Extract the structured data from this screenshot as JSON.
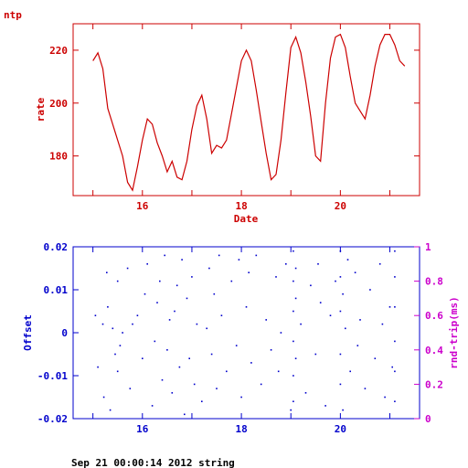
{
  "page_title": "ntp",
  "footer": "Sep 21 00:00:14 2012 string",
  "colors": {
    "red": "#cc0000",
    "blue": "#0000cc",
    "magenta": "#cc00cc"
  },
  "chart_data": [
    {
      "type": "line",
      "title": "",
      "xlabel": "Date",
      "ylabel": "rate",
      "xlim": [
        14.6,
        21.6
      ],
      "ylim": [
        165,
        230
      ],
      "xticks": [
        15,
        16,
        17,
        18,
        19,
        20,
        21
      ],
      "xtick_labels": [
        "16",
        "18",
        "20"
      ],
      "xtick_label_values": [
        16,
        18,
        20
      ],
      "yticks": [
        180,
        200,
        220
      ],
      "ytick_labels": [
        "180",
        "200",
        "220"
      ],
      "grid": false,
      "series": [
        {
          "x": [
            15.0,
            15.1,
            15.2,
            15.3,
            15.4,
            15.5,
            15.6,
            15.7,
            15.8,
            15.9,
            16.0,
            16.1,
            16.2,
            16.3,
            16.4,
            16.5,
            16.6,
            16.7,
            16.8,
            16.9,
            17.0,
            17.1,
            17.2,
            17.3,
            17.4,
            17.5,
            17.6,
            17.7,
            17.8,
            17.9,
            18.0,
            18.1,
            18.2,
            18.3,
            18.4,
            18.5,
            18.6,
            18.7,
            18.8,
            18.9,
            19.0,
            19.1,
            19.2,
            19.3,
            19.4,
            19.5,
            19.6,
            19.7,
            19.8,
            19.9,
            20.0,
            20.1,
            20.2,
            20.3,
            20.4,
            20.5,
            20.6,
            20.7,
            20.8,
            20.9,
            21.0,
            21.1,
            21.2,
            21.3
          ],
          "y": [
            216,
            219,
            213,
            198,
            192,
            186,
            180,
            170,
            167,
            176,
            186,
            194,
            192,
            185,
            180,
            174,
            178,
            172,
            171,
            178,
            190,
            199,
            203,
            194,
            181,
            184,
            183,
            186,
            196,
            206,
            216,
            220,
            216,
            205,
            193,
            181,
            171,
            173,
            186,
            204,
            221,
            225,
            219,
            208,
            195,
            180,
            178,
            200,
            217,
            225,
            226,
            221,
            210,
            200,
            197,
            194,
            203,
            214,
            222,
            226,
            226,
            222,
            216,
            214
          ]
        }
      ]
    },
    {
      "type": "scatter",
      "title": "",
      "xlabel": "",
      "ylabel": "Offset",
      "y2label": "rnd-trip(ms)",
      "xlim": [
        14.6,
        21.6
      ],
      "ylim": [
        -0.02,
        0.02
      ],
      "y2lim": [
        0,
        1
      ],
      "xticks": [
        15,
        16,
        17,
        18,
        19,
        20,
        21
      ],
      "xtick_labels": [
        "16",
        "18",
        "20"
      ],
      "xtick_label_values": [
        16,
        18,
        20
      ],
      "yticks": [
        -0.02,
        -0.01,
        0,
        0.01,
        0.02
      ],
      "ytick_labels": [
        "-0.02",
        "-0.01",
        "0",
        "0.01",
        "0.02"
      ],
      "y2ticks": [
        0,
        0.2,
        0.4,
        0.6,
        0.8,
        1
      ],
      "y2tick_labels": [
        "0",
        "0.2",
        "0.4",
        "0.6",
        "0.8",
        "1"
      ],
      "grid": false,
      "series": [
        {
          "x": [
            15.05,
            15.1,
            15.2,
            15.22,
            15.28,
            15.3,
            15.35,
            15.4,
            15.45,
            15.5,
            15.5,
            15.55,
            15.6,
            15.7,
            15.75,
            15.8,
            15.9,
            16.0,
            16.05,
            16.1,
            16.2,
            16.25,
            16.3,
            16.35,
            16.4,
            16.45,
            16.5,
            16.55,
            16.6,
            16.65,
            16.7,
            16.75,
            16.8,
            16.85,
            16.9,
            16.95,
            17.0,
            17.05,
            17.1,
            17.2,
            17.3,
            17.35,
            17.4,
            17.45,
            17.5,
            17.55,
            17.6,
            17.7,
            17.8,
            17.9,
            17.95,
            18.0,
            18.1,
            18.15,
            18.2,
            18.3,
            18.4,
            18.5,
            18.6,
            18.7,
            18.75,
            18.8,
            18.9,
            19.0,
            19.05,
            19.05,
            19.05,
            19.05,
            19.05,
            19.05,
            19.1,
            19.1,
            19.1,
            19.2,
            19.3,
            19.4,
            19.5,
            19.55,
            19.6,
            19.7,
            19.8,
            19.9,
            20.0,
            20.0,
            20.0,
            20.0,
            20.0,
            20.05,
            20.05,
            20.1,
            20.15,
            20.2,
            20.3,
            20.35,
            20.4,
            20.5,
            20.6,
            20.7,
            20.8,
            20.85,
            20.9,
            21.0,
            21.05,
            21.1,
            21.1,
            21.1,
            21.1,
            21.1,
            21.1
          ],
          "y": [
            0.004,
            -0.008,
            0.002,
            -0.015,
            0.014,
            0.006,
            -0.018,
            0.001,
            -0.005,
            0.012,
            -0.009,
            -0.003,
            0.0,
            0.015,
            -0.013,
            0.002,
            0.004,
            -0.006,
            0.009,
            0.016,
            -0.017,
            -0.002,
            0.007,
            0.012,
            -0.011,
            0.018,
            -0.004,
            0.003,
            -0.014,
            0.005,
            0.011,
            -0.008,
            0.017,
            -0.019,
            0.008,
            -0.006,
            0.013,
            -0.012,
            0.002,
            -0.016,
            0.001,
            0.015,
            -0.005,
            0.009,
            -0.013,
            0.018,
            0.004,
            -0.009,
            0.012,
            -0.003,
            0.017,
            -0.015,
            0.006,
            0.014,
            -0.007,
            0.018,
            -0.012,
            0.003,
            -0.004,
            0.013,
            -0.009,
            0.0,
            0.016,
            -0.018,
            0.019,
            0.012,
            0.005,
            -0.002,
            -0.01,
            -0.016,
            0.008,
            -0.006,
            0.015,
            0.002,
            -0.014,
            0.011,
            -0.005,
            0.016,
            0.007,
            -0.017,
            0.004,
            0.012,
            0.019,
            0.013,
            0.005,
            -0.005,
            -0.012,
            0.009,
            -0.018,
            0.001,
            0.017,
            -0.009,
            0.014,
            -0.003,
            0.003,
            -0.013,
            0.01,
            -0.006,
            0.016,
            0.002,
            -0.015,
            0.006,
            -0.008,
            0.019,
            0.013,
            0.006,
            -0.002,
            -0.009,
            -0.016
          ]
        }
      ]
    }
  ]
}
